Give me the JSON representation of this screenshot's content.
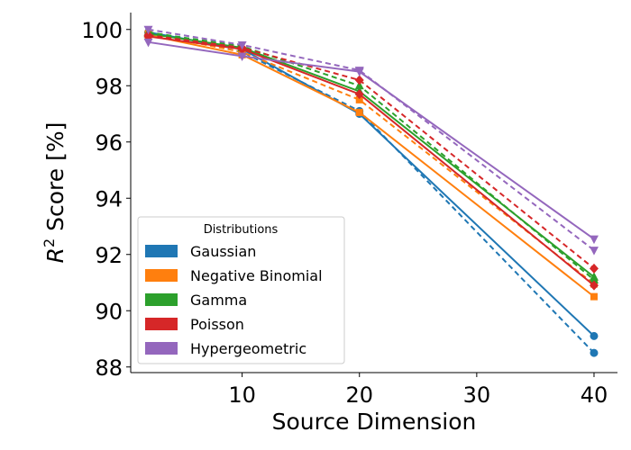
{
  "chart_data": {
    "type": "line",
    "title": "",
    "xlabel": "Source Dimension",
    "ylabel_main": "R",
    "ylabel_sup": "2",
    "ylabel_rest": " Score [%]",
    "x": [
      2,
      10,
      20,
      40
    ],
    "xlim": [
      0.5,
      42
    ],
    "ylim": [
      87.8,
      100.6
    ],
    "xticks": [
      10,
      20,
      30,
      40
    ],
    "yticks": [
      88,
      90,
      92,
      94,
      96,
      98,
      100
    ],
    "grid": false,
    "legend": {
      "title": "Distributions",
      "placement": "lower-left"
    },
    "series": [
      {
        "name": "Gaussian",
        "color": "#1f77b4",
        "marker": "circle",
        "solid": [
          99.9,
          99.3,
          97.0,
          89.1
        ],
        "dashed": [
          99.9,
          99.2,
          97.1,
          88.5
        ]
      },
      {
        "name": "Negative Binomial",
        "color": "#ff7f0e",
        "marker": "square",
        "solid": [
          99.8,
          99.1,
          97.05,
          90.5
        ],
        "dashed": [
          99.85,
          99.2,
          97.5,
          90.95
        ]
      },
      {
        "name": "Gamma",
        "color": "#2ca02c",
        "marker": "triangle-up",
        "solid": [
          99.85,
          99.35,
          97.8,
          91.2
        ],
        "dashed": [
          99.9,
          99.4,
          98.0,
          91.1
        ]
      },
      {
        "name": "Poisson",
        "color": "#d62728",
        "marker": "diamond",
        "solid": [
          99.75,
          99.3,
          97.7,
          90.9
        ],
        "dashed": [
          99.8,
          99.35,
          98.2,
          91.5
        ]
      },
      {
        "name": "Hypergeometric",
        "color": "#9467bd",
        "marker": "triangle-down",
        "solid": [
          99.55,
          99.05,
          98.5,
          92.55
        ],
        "dashed": [
          100.0,
          99.45,
          98.55,
          92.15
        ]
      }
    ]
  }
}
